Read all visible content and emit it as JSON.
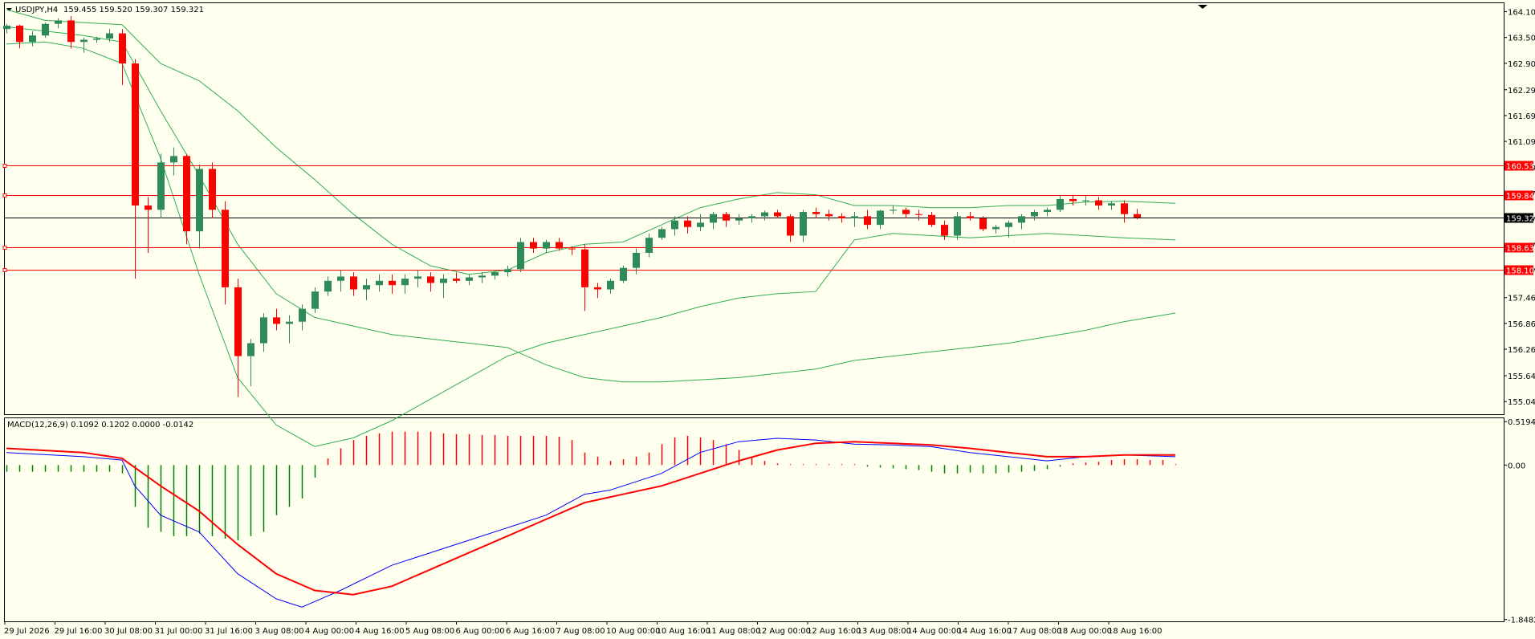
{
  "header": {
    "title": "USDJPY,H4",
    "ohlc": "159.455 159.520 159.307 159.321"
  },
  "macd_header": "MACD(12,26,9) 0.1092 0.1202 0.0000 -0.0142",
  "colors": {
    "background": "#FFFFF0",
    "bull": "#2E8B57",
    "bear": "#FF0000",
    "band": "#2FAF4F",
    "level": "#FF0000",
    "current": "#000000",
    "macd_main": "#0000FF",
    "macd_signal": "#FF0000",
    "hist_pos": "#FF0000",
    "hist_neg": "#008000"
  },
  "chart_data": [
    {
      "type": "candlestick",
      "symbol": "USDJPY",
      "timeframe": "H4",
      "ylim": [
        154.75,
        164.3
      ],
      "y_ticks": [
        "164.105",
        "163.505",
        "162.905",
        "162.290",
        "161.690",
        "161.090",
        "160.490",
        "159.875",
        "159.275",
        "158.675",
        "158.075",
        "157.460",
        "156.860",
        "156.260",
        "155.645",
        "155.045"
      ],
      "x_labels": [
        "29 Jul 2026",
        "29 Jul 16:00",
        "30 Jul 08:00",
        "31 Jul 00:00",
        "31 Jul 16:00",
        "3 Aug 08:00",
        "4 Aug 00:00",
        "4 Aug 16:00",
        "5 Aug 08:00",
        "6 Aug 00:00",
        "6 Aug 16:00",
        "7 Aug 08:00",
        "10 Aug 00:00",
        "10 Aug 16:00",
        "11 Aug 08:00",
        "12 Aug 00:00",
        "12 Aug 16:00",
        "13 Aug 08:00",
        "14 Aug 00:00",
        "14 Aug 16:00",
        "17 Aug 08:00",
        "18 Aug 00:00",
        "18 Aug 16:00"
      ],
      "levels": [
        {
          "label": "160.538",
          "value": 160.538
        },
        {
          "label": "159.844",
          "value": 159.844
        },
        {
          "label": "158.637",
          "value": 158.637
        },
        {
          "label": "158.107",
          "value": 158.107
        }
      ],
      "current_price": {
        "label": "159.321",
        "value": 159.321
      },
      "candles": [
        [
          163.7,
          163.82,
          163.6,
          163.78
        ],
        [
          163.78,
          163.8,
          163.25,
          163.4
        ],
        [
          163.4,
          163.65,
          163.3,
          163.55
        ],
        [
          163.55,
          163.85,
          163.5,
          163.82
        ],
        [
          163.82,
          163.95,
          163.72,
          163.9
        ],
        [
          163.9,
          164.0,
          163.25,
          163.4
        ],
        [
          163.4,
          163.5,
          163.15,
          163.45
        ],
        [
          163.45,
          163.52,
          163.38,
          163.48
        ],
        [
          163.48,
          163.7,
          163.4,
          163.6
        ],
        [
          163.6,
          163.7,
          162.4,
          162.9
        ],
        [
          162.9,
          163.0,
          157.9,
          159.6
        ],
        [
          159.6,
          159.8,
          158.5,
          159.5
        ],
        [
          159.5,
          160.8,
          159.3,
          160.6
        ],
        [
          160.6,
          160.95,
          160.3,
          160.75
        ],
        [
          160.75,
          160.8,
          158.7,
          159.0
        ],
        [
          159.0,
          160.55,
          158.6,
          160.45
        ],
        [
          160.45,
          160.6,
          159.3,
          159.5
        ],
        [
          159.5,
          159.7,
          157.3,
          157.7
        ],
        [
          157.7,
          157.9,
          155.15,
          156.1
        ],
        [
          156.1,
          156.5,
          155.4,
          156.4
        ],
        [
          156.4,
          157.1,
          156.2,
          157.0
        ],
        [
          157.0,
          157.2,
          156.7,
          156.85
        ],
        [
          156.85,
          157.05,
          156.4,
          156.9
        ],
        [
          156.9,
          157.3,
          156.7,
          157.2
        ],
        [
          157.2,
          157.7,
          157.1,
          157.6
        ],
        [
          157.6,
          157.95,
          157.5,
          157.85
        ],
        [
          157.85,
          158.1,
          157.6,
          157.95
        ],
        [
          157.95,
          158.05,
          157.5,
          157.65
        ],
        [
          157.65,
          157.9,
          157.4,
          157.75
        ],
        [
          157.75,
          158.0,
          157.6,
          157.85
        ],
        [
          157.85,
          158.0,
          157.55,
          157.75
        ],
        [
          157.75,
          158.0,
          157.55,
          157.9
        ],
        [
          157.9,
          158.1,
          157.7,
          157.95
        ],
        [
          157.95,
          158.05,
          157.6,
          157.8
        ],
        [
          157.8,
          158.0,
          157.45,
          157.9
        ],
        [
          157.9,
          158.05,
          157.8,
          157.85
        ],
        [
          157.85,
          158.0,
          157.75,
          157.93
        ],
        [
          157.93,
          158.05,
          157.8,
          157.97
        ],
        [
          157.97,
          158.1,
          157.88,
          158.05
        ],
        [
          158.05,
          158.2,
          157.95,
          158.12
        ],
        [
          158.12,
          158.85,
          158.05,
          158.75
        ],
        [
          158.75,
          158.85,
          158.5,
          158.6
        ],
        [
          158.6,
          158.8,
          158.5,
          158.75
        ],
        [
          158.75,
          158.85,
          158.55,
          158.6
        ],
        [
          158.6,
          158.65,
          158.45,
          158.58
        ],
        [
          158.58,
          158.7,
          157.15,
          157.7
        ],
        [
          157.7,
          157.8,
          157.45,
          157.65
        ],
        [
          157.65,
          157.9,
          157.55,
          157.85
        ],
        [
          157.85,
          158.2,
          157.8,
          158.15
        ],
        [
          158.15,
          158.6,
          158.0,
          158.5
        ],
        [
          158.5,
          158.95,
          158.4,
          158.85
        ],
        [
          158.85,
          159.1,
          158.8,
          159.05
        ],
        [
          159.05,
          159.35,
          158.9,
          159.25
        ],
        [
          159.25,
          159.35,
          158.95,
          159.1
        ],
        [
          159.1,
          159.4,
          159.0,
          159.2
        ],
        [
          159.2,
          159.45,
          159.05,
          159.4
        ],
        [
          159.4,
          159.45,
          159.1,
          159.25
        ],
        [
          159.25,
          159.4,
          159.15,
          159.3
        ],
        [
          159.3,
          159.4,
          159.2,
          159.35
        ],
        [
          159.35,
          159.48,
          159.25,
          159.44
        ],
        [
          159.44,
          159.5,
          159.3,
          159.35
        ],
        [
          159.35,
          159.4,
          158.75,
          158.9
        ],
        [
          158.9,
          159.5,
          158.75,
          159.45
        ],
        [
          159.45,
          159.55,
          159.3,
          159.4
        ],
        [
          159.4,
          159.5,
          159.25,
          159.35
        ],
        [
          159.35,
          159.42,
          159.2,
          159.3
        ],
        [
          159.3,
          159.45,
          159.1,
          159.35
        ],
        [
          159.35,
          159.5,
          159.05,
          159.15
        ],
        [
          159.15,
          159.5,
          159.05,
          159.48
        ],
        [
          159.48,
          159.6,
          159.4,
          159.5
        ],
        [
          159.5,
          159.55,
          159.3,
          159.4
        ],
        [
          159.4,
          159.5,
          159.25,
          159.38
        ],
        [
          159.38,
          159.45,
          159.1,
          159.15
        ],
        [
          159.15,
          159.25,
          158.8,
          158.9
        ],
        [
          158.9,
          159.45,
          158.8,
          159.35
        ],
        [
          159.35,
          159.45,
          159.25,
          159.3
        ],
        [
          159.3,
          159.35,
          159.0,
          159.05
        ],
        [
          159.05,
          159.15,
          158.95,
          159.1
        ],
        [
          159.1,
          159.25,
          158.85,
          159.2
        ],
        [
          159.2,
          159.4,
          159.05,
          159.35
        ],
        [
          159.35,
          159.5,
          159.25,
          159.45
        ],
        [
          159.45,
          159.55,
          159.35,
          159.5
        ],
        [
          159.5,
          159.85,
          159.45,
          159.75
        ],
        [
          159.75,
          159.85,
          159.6,
          159.7
        ],
        [
          159.7,
          159.82,
          159.6,
          159.72
        ],
        [
          159.72,
          159.8,
          159.5,
          159.6
        ],
        [
          159.6,
          159.7,
          159.5,
          159.65
        ],
        [
          159.65,
          159.72,
          159.2,
          159.4
        ],
        [
          159.4,
          159.52,
          159.28,
          159.32
        ]
      ],
      "band_upper": [
        [
          0,
          164.15
        ],
        [
          3,
          163.9
        ],
        [
          6,
          163.85
        ],
        [
          9,
          163.8
        ],
        [
          12,
          162.9
        ],
        [
          15,
          162.5
        ],
        [
          18,
          161.8
        ],
        [
          21,
          160.95
        ],
        [
          24,
          160.2
        ],
        [
          27,
          159.4
        ],
        [
          30,
          158.7
        ],
        [
          33,
          158.2
        ],
        [
          36,
          158.0
        ],
        [
          39,
          158.1
        ],
        [
          42,
          158.5
        ],
        [
          45,
          158.7
        ],
        [
          48,
          158.75
        ],
        [
          51,
          159.15
        ],
        [
          54,
          159.55
        ],
        [
          57,
          159.75
        ],
        [
          60,
          159.9
        ],
        [
          63,
          159.85
        ],
        [
          66,
          159.6
        ],
        [
          69,
          159.6
        ],
        [
          72,
          159.55
        ],
        [
          75,
          159.55
        ],
        [
          78,
          159.6
        ],
        [
          81,
          159.6
        ],
        [
          84,
          159.68
        ],
        [
          87,
          159.7
        ],
        [
          91,
          159.65
        ]
      ],
      "band_middle": [
        [
          0,
          163.75
        ],
        [
          3,
          163.65
        ],
        [
          6,
          163.55
        ],
        [
          9,
          163.4
        ],
        [
          12,
          161.8
        ],
        [
          15,
          160.3
        ],
        [
          18,
          158.7
        ],
        [
          21,
          157.55
        ],
        [
          24,
          157.0
        ],
        [
          27,
          156.8
        ],
        [
          30,
          156.6
        ],
        [
          33,
          156.5
        ],
        [
          36,
          156.4
        ],
        [
          39,
          156.3
        ],
        [
          42,
          155.9
        ],
        [
          45,
          155.6
        ],
        [
          48,
          155.5
        ],
        [
          51,
          155.5
        ],
        [
          54,
          155.55
        ],
        [
          57,
          155.6
        ],
        [
          60,
          155.7
        ],
        [
          63,
          155.8
        ],
        [
          66,
          156.0
        ],
        [
          69,
          156.1
        ],
        [
          72,
          156.2
        ],
        [
          75,
          156.3
        ],
        [
          78,
          156.4
        ],
        [
          81,
          156.55
        ],
        [
          84,
          156.7
        ],
        [
          87,
          156.9
        ],
        [
          91,
          157.1
        ]
      ],
      "band_lower": [
        [
          0,
          163.35
        ],
        [
          3,
          163.4
        ],
        [
          6,
          163.25
        ],
        [
          9,
          162.9
        ],
        [
          12,
          160.7
        ],
        [
          15,
          158.0
        ],
        [
          18,
          155.6
        ],
        [
          21,
          154.5
        ],
        [
          24,
          154.0
        ],
        [
          27,
          154.2
        ],
        [
          30,
          154.6
        ],
        [
          33,
          155.1
        ],
        [
          36,
          155.6
        ],
        [
          39,
          156.1
        ],
        [
          42,
          156.4
        ],
        [
          45,
          156.6
        ],
        [
          48,
          156.8
        ],
        [
          51,
          157.0
        ],
        [
          54,
          157.25
        ],
        [
          57,
          157.45
        ],
        [
          60,
          157.55
        ],
        [
          63,
          157.6
        ],
        [
          66,
          158.8
        ],
        [
          69,
          158.95
        ],
        [
          72,
          158.9
        ],
        [
          75,
          158.85
        ],
        [
          78,
          158.9
        ],
        [
          81,
          158.95
        ],
        [
          84,
          158.9
        ],
        [
          87,
          158.85
        ],
        [
          91,
          158.8
        ]
      ]
    },
    {
      "type": "macd",
      "ylim": [
        -1.87,
        0.56
      ],
      "y_ticks": [
        "0.5194",
        "0.00",
        "-1.8482"
      ],
      "histogram": [
        -0.08,
        -0.08,
        -0.08,
        -0.08,
        -0.08,
        -0.08,
        -0.08,
        -0.08,
        -0.08,
        -0.1,
        -0.5,
        -0.75,
        -0.8,
        -0.85,
        -0.85,
        -0.82,
        -0.85,
        -0.88,
        -0.9,
        -0.85,
        -0.8,
        -0.6,
        -0.5,
        -0.4,
        -0.15,
        0.08,
        0.2,
        0.3,
        0.35,
        0.38,
        0.4,
        0.4,
        0.4,
        0.4,
        0.38,
        0.37,
        0.37,
        0.36,
        0.36,
        0.35,
        0.35,
        0.35,
        0.35,
        0.34,
        0.3,
        0.15,
        0.1,
        0.05,
        0.07,
        0.1,
        0.15,
        0.25,
        0.33,
        0.35,
        0.33,
        0.3,
        0.25,
        0.18,
        0.1,
        0.05,
        0.02,
        0.01,
        0.01,
        0.01,
        0.01,
        0.01,
        0.01,
        -0.02,
        -0.03,
        -0.04,
        -0.05,
        -0.06,
        -0.08,
        -0.1,
        -0.1,
        -0.09,
        -0.1,
        -0.1,
        -0.09,
        -0.08,
        -0.07,
        -0.05,
        -0.02,
        0.02,
        0.03,
        0.04,
        0.06,
        0.07,
        0.07,
        0.06,
        0.06,
        0.01
      ],
      "main": [
        [
          0,
          0.15
        ],
        [
          6,
          0.1
        ],
        [
          9,
          0.06
        ],
        [
          10,
          -0.25
        ],
        [
          12,
          -0.6
        ],
        [
          15,
          -0.8
        ],
        [
          18,
          -1.3
        ],
        [
          21,
          -1.6
        ],
        [
          23,
          -1.7
        ],
        [
          26,
          -1.5
        ],
        [
          30,
          -1.2
        ],
        [
          36,
          -0.9
        ],
        [
          42,
          -0.6
        ],
        [
          45,
          -0.35
        ],
        [
          47,
          -0.3
        ],
        [
          51,
          -0.1
        ],
        [
          54,
          0.15
        ],
        [
          57,
          0.28
        ],
        [
          60,
          0.32
        ],
        [
          63,
          0.3
        ],
        [
          66,
          0.25
        ],
        [
          69,
          0.24
        ],
        [
          72,
          0.22
        ],
        [
          75,
          0.15
        ],
        [
          78,
          0.1
        ],
        [
          81,
          0.05
        ],
        [
          84,
          0.1
        ],
        [
          87,
          0.12
        ],
        [
          91,
          0.1
        ]
      ],
      "signal": [
        [
          0,
          0.2
        ],
        [
          6,
          0.15
        ],
        [
          9,
          0.08
        ],
        [
          12,
          -0.25
        ],
        [
          15,
          -0.55
        ],
        [
          18,
          -0.95
        ],
        [
          21,
          -1.3
        ],
        [
          24,
          -1.5
        ],
        [
          27,
          -1.55
        ],
        [
          30,
          -1.45
        ],
        [
          33,
          -1.25
        ],
        [
          36,
          -1.05
        ],
        [
          39,
          -0.85
        ],
        [
          42,
          -0.65
        ],
        [
          45,
          -0.45
        ],
        [
          48,
          -0.35
        ],
        [
          51,
          -0.25
        ],
        [
          54,
          -0.1
        ],
        [
          57,
          0.05
        ],
        [
          60,
          0.18
        ],
        [
          63,
          0.26
        ],
        [
          66,
          0.28
        ],
        [
          69,
          0.26
        ],
        [
          72,
          0.24
        ],
        [
          75,
          0.2
        ],
        [
          78,
          0.15
        ],
        [
          81,
          0.1
        ],
        [
          84,
          0.1
        ],
        [
          87,
          0.12
        ],
        [
          91,
          0.12
        ]
      ]
    }
  ]
}
